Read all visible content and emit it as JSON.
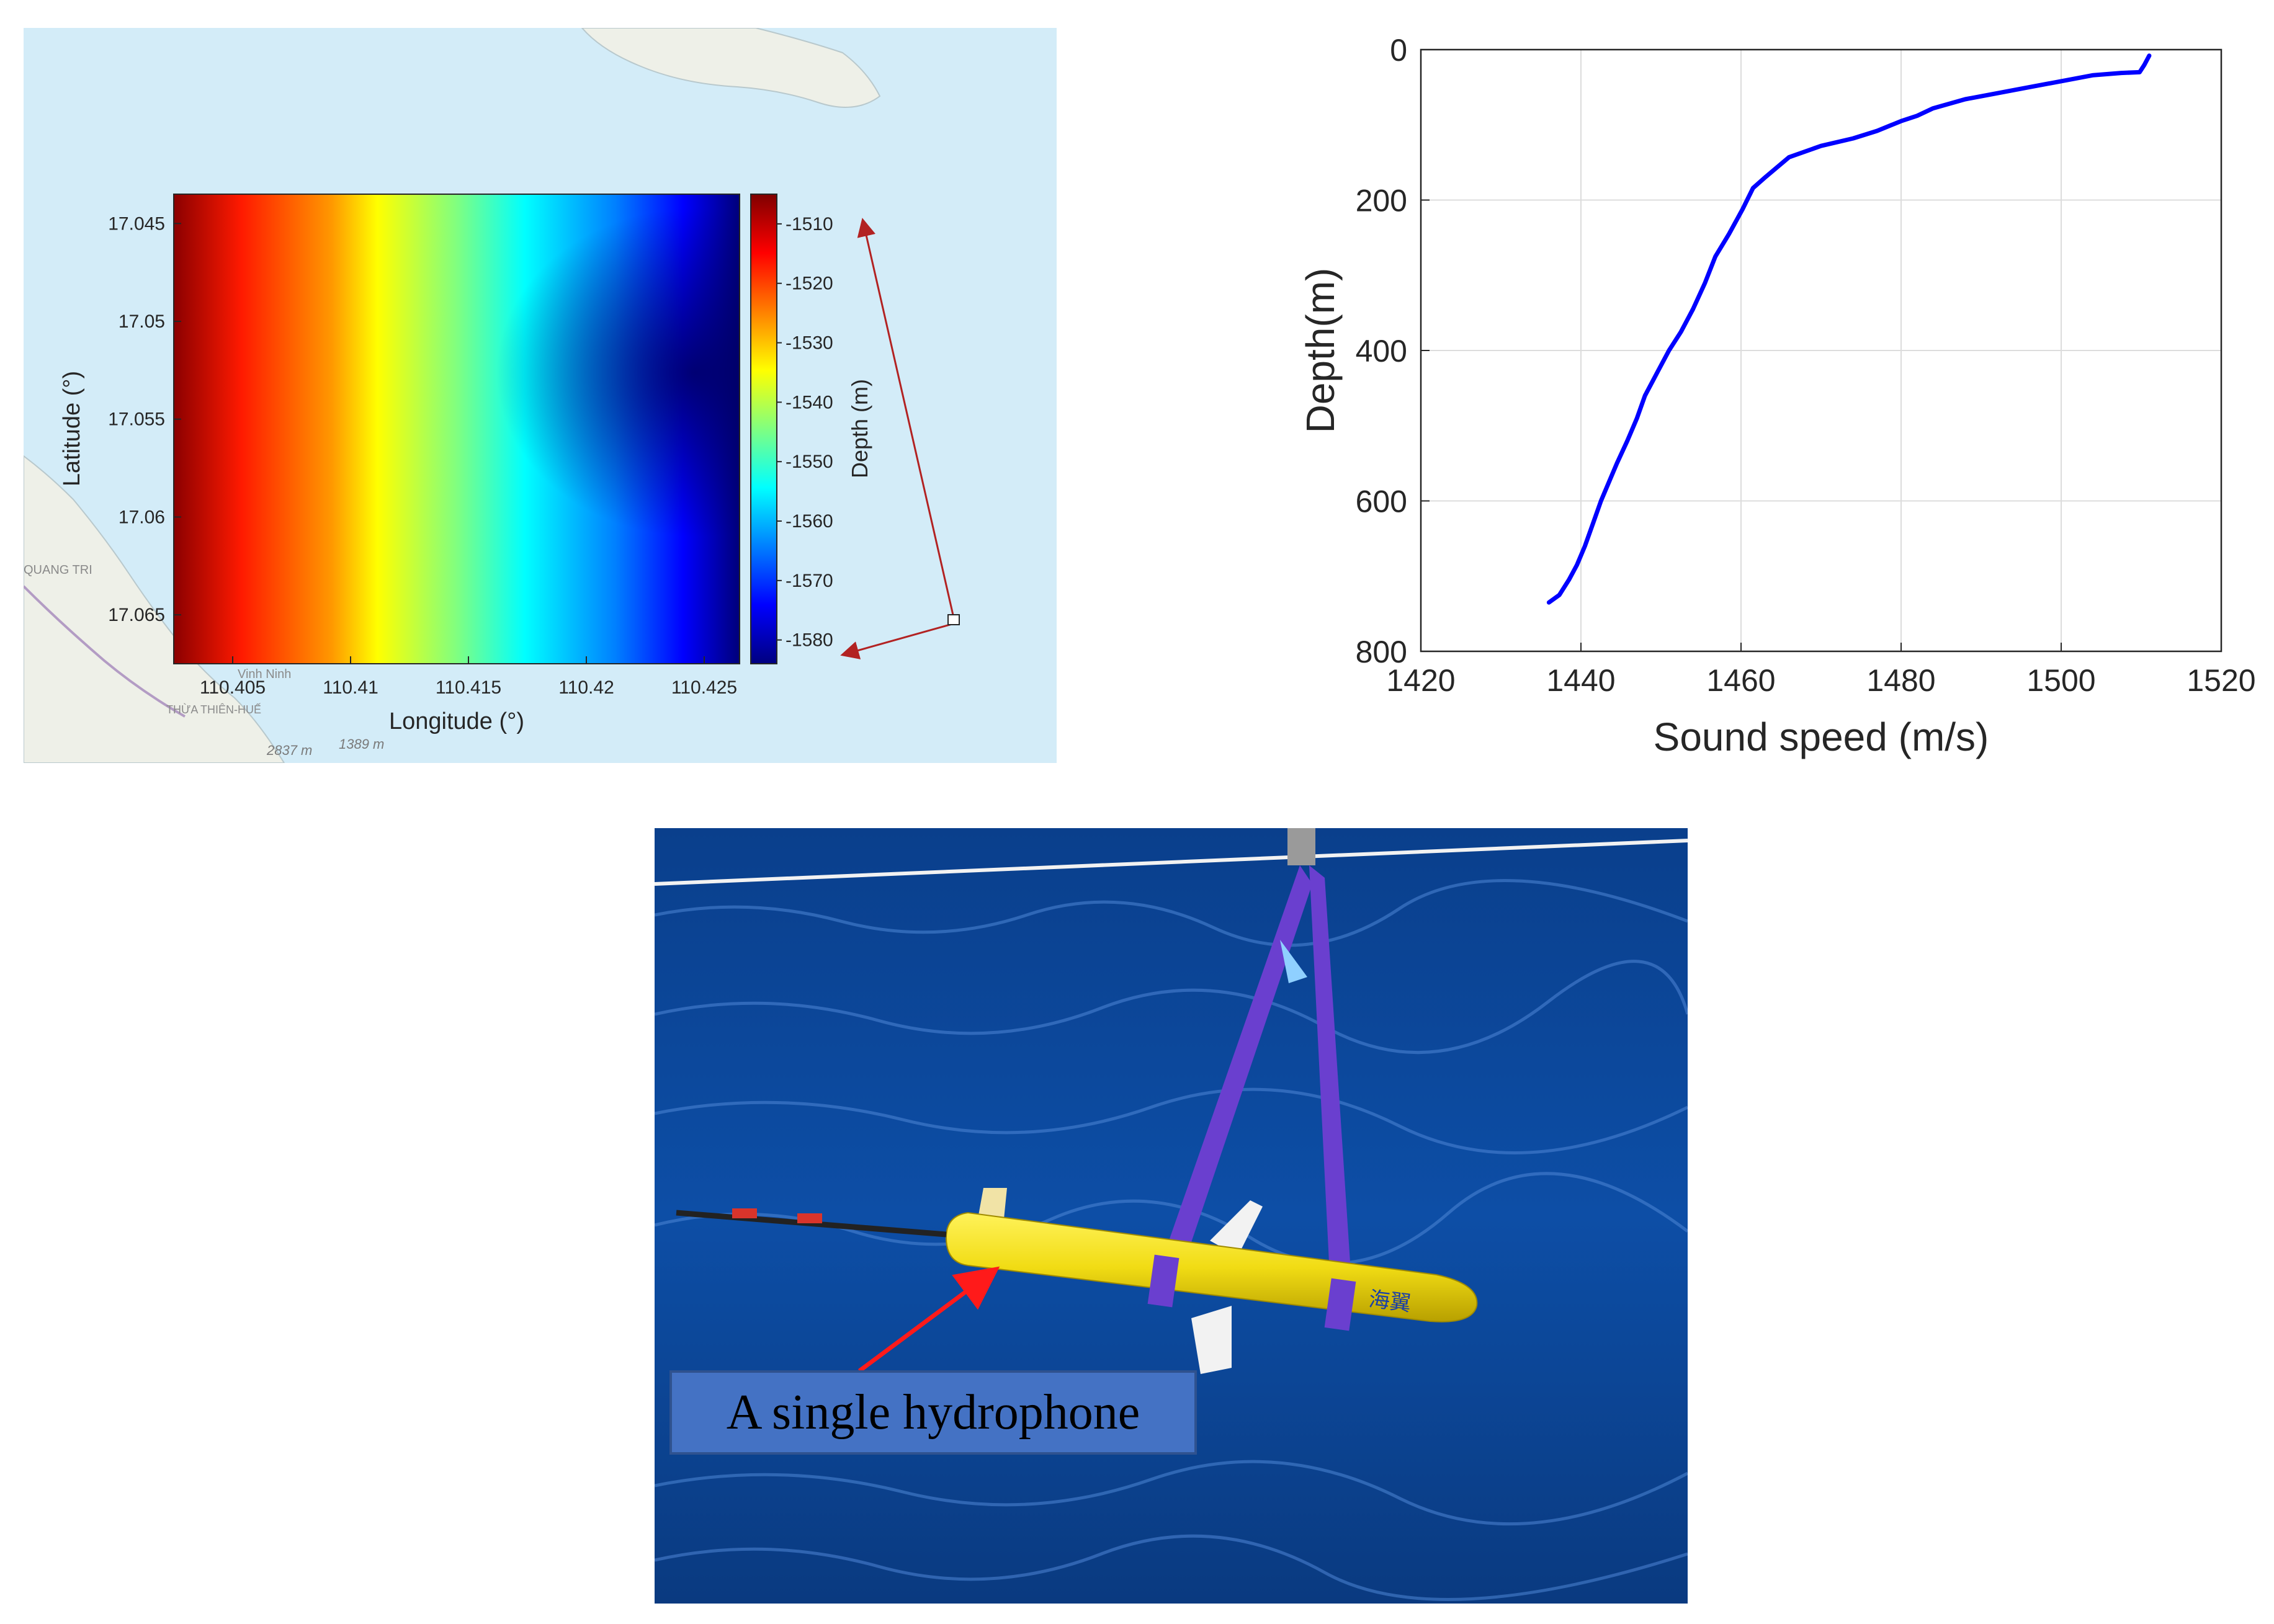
{
  "chart_data": [
    {
      "type": "heatmap",
      "xlabel": "Longitude (°)",
      "ylabel": "Latitude (°)",
      "x_ticks": [
        "110.405",
        "110.41",
        "110.415",
        "110.42",
        "110.425"
      ],
      "y_ticks": [
        "17.045",
        "17.05",
        "17.055",
        "17.06",
        "17.065"
      ],
      "xlim": [
        110.4025,
        110.4265
      ],
      "ylim": [
        17.0435,
        17.0675
      ],
      "colorbar": {
        "label": "Depth (m)",
        "ticks": [
          "-1510",
          "-1520",
          "-1530",
          "-1540",
          "-1550",
          "-1560",
          "-1570",
          "-1580"
        ],
        "range": [
          -1584,
          -1505
        ],
        "colormap": "jet"
      },
      "depth_range": {
        "shallowest": -1505,
        "deepest": -1584
      },
      "background_map_labels": [
        "Vinh Ninh",
        "QUANG TRI",
        "THỪA THIÊN-HUẾ",
        "2837 m",
        "1389 m"
      ]
    },
    {
      "type": "line",
      "xlabel": "Sound speed (m/s)",
      "ylabel": "Depth(m)",
      "xlim": [
        1420,
        1520
      ],
      "ylim": [
        800,
        0
      ],
      "x_ticks": [
        "1420",
        "1440",
        "1460",
        "1480",
        "1500",
        "1520"
      ],
      "y_ticks": [
        "0",
        "200",
        "400",
        "600",
        "800"
      ],
      "grid": true,
      "series": [
        {
          "color": "#0000ff",
          "points": [
            [
              1511.0,
              8
            ],
            [
              1510.4,
              20
            ],
            [
              1509.8,
              30
            ],
            [
              1507.5,
              31
            ],
            [
              1504,
              34
            ],
            [
              1500,
              42
            ],
            [
              1496,
              50
            ],
            [
              1492,
              58
            ],
            [
              1488,
              66
            ],
            [
              1484,
              78
            ],
            [
              1482,
              88
            ],
            [
              1480,
              95
            ],
            [
              1477,
              108
            ],
            [
              1474,
              118
            ],
            [
              1470,
              128
            ],
            [
              1466,
              143
            ],
            [
              1463,
              170
            ],
            [
              1461.5,
              184
            ],
            [
              1460.2,
              212
            ],
            [
              1458.5,
              245
            ],
            [
              1456.8,
              275
            ],
            [
              1455.5,
              310
            ],
            [
              1454.0,
              345
            ],
            [
              1452.5,
              375
            ],
            [
              1451.0,
              400
            ],
            [
              1449.5,
              430
            ],
            [
              1448.0,
              460
            ],
            [
              1447.0,
              490
            ],
            [
              1445.8,
              520
            ],
            [
              1444.5,
              550
            ],
            [
              1443.5,
              575
            ],
            [
              1442.5,
              600
            ],
            [
              1441.5,
              630
            ],
            [
              1440.5,
              660
            ],
            [
              1439.5,
              685
            ],
            [
              1438.5,
              705
            ],
            [
              1437.3,
              725
            ],
            [
              1436.0,
              735
            ]
          ]
        }
      ]
    }
  ],
  "photo": {
    "annotation_label": "A single hydrophone",
    "glider_marking": "海翼"
  }
}
